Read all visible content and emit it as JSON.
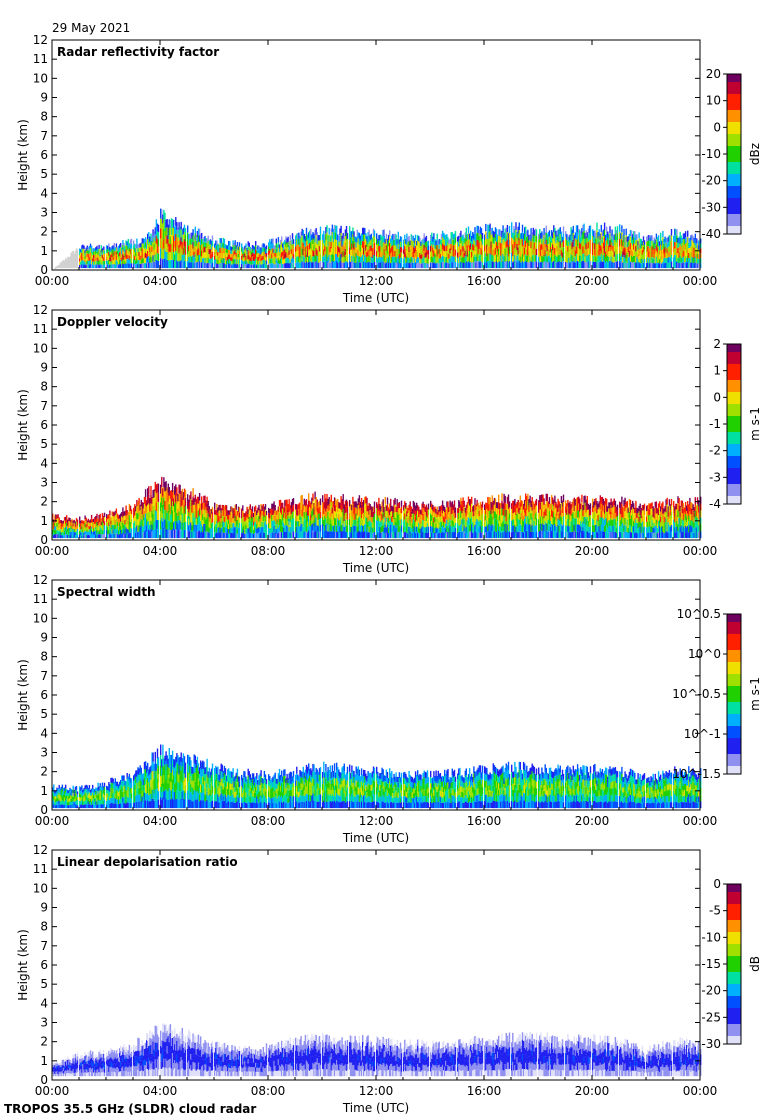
{
  "date": "29 May 2021",
  "footer": "TROPOS 35.5 GHz (SLDR) cloud radar",
  "colors": {
    "jet": [
      "#e0e0f8",
      "#9090f0",
      "#2020f0",
      "#0050ff",
      "#00b0ff",
      "#00e0a0",
      "#20d000",
      "#a0e000",
      "#f0e000",
      "#ff9000",
      "#ff2000",
      "#c00030",
      "#700060"
    ],
    "missing": "#d0d0d0",
    "gap": "#ffffff"
  },
  "chart_data": [
    {
      "type": "heatmap",
      "title": "Radar reflectivity factor",
      "xlabel": "Time (UTC)",
      "ylabel": "Height (km)",
      "xlim": [
        0,
        24
      ],
      "ylim": [
        0,
        12
      ],
      "xticks": [
        "00:00",
        "04:00",
        "08:00",
        "12:00",
        "16:00",
        "20:00",
        "00:00"
      ],
      "yticks": [
        "0",
        "1",
        "2",
        "3",
        "4",
        "5",
        "6",
        "7",
        "8",
        "9",
        "10",
        "11",
        "12"
      ],
      "colorbar": {
        "label": "dBz",
        "range": [
          -40,
          20
        ],
        "ticks": [
          "20",
          "10",
          "0",
          "-10",
          "-20",
          "-30",
          "-40"
        ]
      },
      "cloud_top_km": [
        [
          0,
          0
        ],
        [
          1,
          1.2
        ],
        [
          2,
          1.2
        ],
        [
          3,
          1.5
        ],
        [
          3.7,
          1.8
        ],
        [
          4,
          2.9
        ],
        [
          4.5,
          2.5
        ],
        [
          5,
          2.2
        ],
        [
          6,
          1.6
        ],
        [
          7,
          1.3
        ],
        [
          8,
          1.4
        ],
        [
          9,
          1.8
        ],
        [
          10,
          2.1
        ],
        [
          11,
          2.0
        ],
        [
          12,
          1.9
        ],
        [
          13,
          1.8
        ],
        [
          14,
          1.7
        ],
        [
          15,
          1.9
        ],
        [
          16,
          2.1
        ],
        [
          17,
          2.2
        ],
        [
          18,
          2.1
        ],
        [
          19,
          2.0
        ],
        [
          20,
          2.2
        ],
        [
          21,
          2.1
        ],
        [
          22,
          1.6
        ],
        [
          23,
          1.9
        ],
        [
          24,
          1.8
        ]
      ],
      "cloud_base_km": 0.1,
      "value_low_high": [
        -35,
        10
      ],
      "missing_hours": [
        [
          0,
          1
        ]
      ]
    },
    {
      "type": "heatmap",
      "title": "Doppler velocity",
      "xlabel": "Time (UTC)",
      "ylabel": "Height (km)",
      "xlim": [
        0,
        24
      ],
      "ylim": [
        0,
        12
      ],
      "xticks": [
        "00:00",
        "04:00",
        "08:00",
        "12:00",
        "16:00",
        "20:00",
        "00:00"
      ],
      "yticks": [
        "0",
        "1",
        "2",
        "3",
        "4",
        "5",
        "6",
        "7",
        "8",
        "9",
        "10",
        "11",
        "12"
      ],
      "colorbar": {
        "label": "m s-1",
        "range": [
          -4,
          2
        ],
        "ticks": [
          "2",
          "1",
          "0",
          "-1",
          "-2",
          "-3",
          "-4"
        ]
      },
      "cloud_top_km": [
        [
          0,
          1.2
        ],
        [
          1,
          1.1
        ],
        [
          2,
          1.3
        ],
        [
          3,
          1.8
        ],
        [
          4,
          3.0
        ],
        [
          4.5,
          2.6
        ],
        [
          5,
          2.5
        ],
        [
          6,
          1.8
        ],
        [
          7,
          1.6
        ],
        [
          8,
          1.7
        ],
        [
          9,
          2.0
        ],
        [
          10,
          2.3
        ],
        [
          11,
          2.1
        ],
        [
          12,
          2.0
        ],
        [
          13,
          1.9
        ],
        [
          14,
          1.8
        ],
        [
          15,
          1.9
        ],
        [
          16,
          2.1
        ],
        [
          17,
          2.2
        ],
        [
          18,
          2.2
        ],
        [
          19,
          2.1
        ],
        [
          20,
          2.1
        ],
        [
          21,
          2.0
        ],
        [
          22,
          1.7
        ],
        [
          23,
          2.0
        ],
        [
          24,
          2.0
        ]
      ],
      "cloud_base_km": 0.1,
      "value_low_high": [
        -2.5,
        1.5
      ]
    },
    {
      "type": "heatmap",
      "title": "Spectral width",
      "xlabel": "Time (UTC)",
      "ylabel": "Height (km)",
      "xlim": [
        0,
        24
      ],
      "ylim": [
        0,
        12
      ],
      "xticks": [
        "00:00",
        "04:00",
        "08:00",
        "12:00",
        "16:00",
        "20:00",
        "00:00"
      ],
      "yticks": [
        "0",
        "1",
        "2",
        "3",
        "4",
        "5",
        "6",
        "7",
        "8",
        "9",
        "10",
        "11",
        "12"
      ],
      "colorbar": {
        "label": "m s-1",
        "range": [
          -1.5,
          0.5
        ],
        "ticks": [
          "10^0.5",
          "10^0",
          "10^-0.5",
          "10^-1",
          "10^-1.5"
        ]
      },
      "cloud_top_km": [
        [
          0,
          1.2
        ],
        [
          1,
          1.1
        ],
        [
          2,
          1.4
        ],
        [
          3,
          1.8
        ],
        [
          4,
          3.0
        ],
        [
          4.5,
          2.8
        ],
        [
          5,
          2.7
        ],
        [
          6,
          2.2
        ],
        [
          7,
          1.9
        ],
        [
          8,
          1.8
        ],
        [
          9,
          2.0
        ],
        [
          10,
          2.3
        ],
        [
          11,
          2.1
        ],
        [
          12,
          2.0
        ],
        [
          13,
          1.9
        ],
        [
          14,
          1.8
        ],
        [
          15,
          1.9
        ],
        [
          16,
          2.1
        ],
        [
          17,
          2.2
        ],
        [
          18,
          2.2
        ],
        [
          19,
          2.1
        ],
        [
          20,
          2.1
        ],
        [
          21,
          2.0
        ],
        [
          22,
          1.7
        ],
        [
          23,
          2.0
        ],
        [
          24,
          2.0
        ]
      ],
      "cloud_base_km": 0.1,
      "value_low_high": [
        -1.2,
        -0.3
      ]
    },
    {
      "type": "heatmap",
      "title": "Linear depolarisation ratio",
      "xlabel": "Time (UTC)",
      "ylabel": "Height (km)",
      "xlim": [
        0,
        24
      ],
      "ylim": [
        0,
        12
      ],
      "xticks": [
        "00:00",
        "04:00",
        "08:00",
        "12:00",
        "16:00",
        "20:00",
        "00:00"
      ],
      "yticks": [
        "0",
        "1",
        "2",
        "3",
        "4",
        "5",
        "6",
        "7",
        "8",
        "9",
        "10",
        "11",
        "12"
      ],
      "colorbar": {
        "label": "dB",
        "range": [
          -30,
          0
        ],
        "ticks": [
          "0",
          "-5",
          "-10",
          "-15",
          "-20",
          "-25",
          "-30"
        ]
      },
      "cloud_top_km": [
        [
          0,
          0.8
        ],
        [
          1,
          1.3
        ],
        [
          2,
          1.4
        ],
        [
          3,
          1.8
        ],
        [
          4,
          2.7
        ],
        [
          4.5,
          2.5
        ],
        [
          5,
          2.3
        ],
        [
          6,
          1.8
        ],
        [
          7,
          1.6
        ],
        [
          8,
          1.7
        ],
        [
          9,
          2.0
        ],
        [
          10,
          2.2
        ],
        [
          11,
          2.1
        ],
        [
          12,
          2.0
        ],
        [
          13,
          1.9
        ],
        [
          14,
          1.8
        ],
        [
          15,
          1.9
        ],
        [
          16,
          2.1
        ],
        [
          17,
          2.2
        ],
        [
          18,
          2.2
        ],
        [
          19,
          2.1
        ],
        [
          20,
          2.1
        ],
        [
          21,
          2.0
        ],
        [
          22,
          1.5
        ],
        [
          23,
          2.0
        ],
        [
          24,
          1.8
        ]
      ],
      "cloud_base_km": 0.2,
      "value_low_high": [
        -30,
        -24
      ]
    }
  ]
}
